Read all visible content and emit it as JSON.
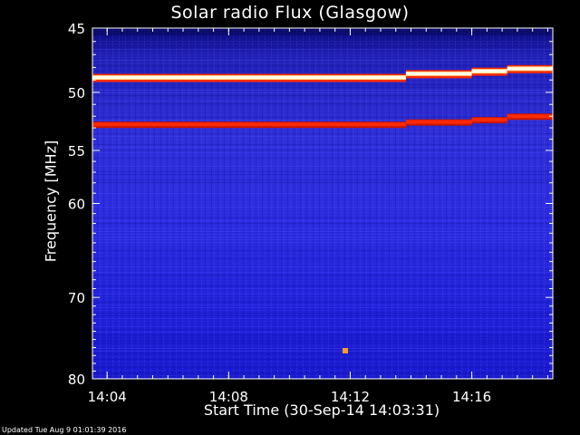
{
  "chart_data": {
    "type": "heatmap",
    "title": "Solar radio Flux (Glasgow)",
    "xlabel": "Start Time (30-Sep-14 14:03:31)",
    "ylabel": "Frequency [MHz]",
    "x_ticks": [
      "14:04",
      "14:08",
      "14:12",
      "14:16"
    ],
    "y_ticks": [
      "45",
      "50",
      "55",
      "60",
      "70",
      "80"
    ],
    "y_tick_values": [
      45,
      50,
      55,
      60,
      70,
      80
    ],
    "y_axis_scale": "log",
    "ylim": [
      45,
      80
    ],
    "xlim": [
      "14:03:31",
      "14:18:40"
    ],
    "grid": false,
    "colors": {
      "background_low": "#2a2ad8",
      "band_white": "#ffffe8",
      "band_red": "#ff2a00",
      "hot_spot": "#ff9a20"
    },
    "bright_bands": [
      {
        "color": "white",
        "segments": [
          {
            "x_start": "14:03:31",
            "x_end": "14:13:50",
            "freq_mhz": 48.8
          },
          {
            "x_start": "14:13:50",
            "x_end": "14:16:00",
            "freq_mhz": 48.5
          },
          {
            "x_start": "14:16:00",
            "x_end": "14:17:10",
            "freq_mhz": 48.3
          },
          {
            "x_start": "14:17:10",
            "x_end": "14:18:40",
            "freq_mhz": 48.1
          }
        ]
      },
      {
        "color": "red",
        "segments": [
          {
            "x_start": "14:03:31",
            "x_end": "14:13:50",
            "freq_mhz": 52.7
          },
          {
            "x_start": "14:13:50",
            "x_end": "14:16:00",
            "freq_mhz": 52.5
          },
          {
            "x_start": "14:16:00",
            "x_end": "14:17:10",
            "freq_mhz": 52.3
          },
          {
            "x_start": "14:17:10",
            "x_end": "14:18:40",
            "freq_mhz": 52.0
          }
        ]
      }
    ]
  },
  "footer": {
    "updated": "Updated Tue Aug  9 01:01:39 2016"
  }
}
